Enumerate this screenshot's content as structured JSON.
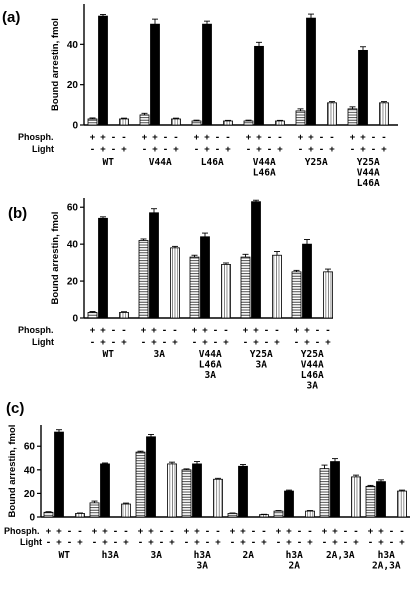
{
  "chart_data": [
    {
      "panel_label": "(a)",
      "type": "bar",
      "ylabel": "Bound arrestin, fmol",
      "ylim": [
        0,
        60
      ],
      "yticks": [
        0,
        20,
        40
      ],
      "row_labels": [
        "Phosph.",
        "Light"
      ],
      "conditions": [
        {
          "phosph": "+",
          "light": "-",
          "fill": "hatched"
        },
        {
          "phosph": "+",
          "light": "+",
          "fill": "black"
        },
        {
          "phosph": "-",
          "light": "-",
          "fill": "white"
        },
        {
          "phosph": "-",
          "light": "+",
          "fill": "dotted"
        }
      ],
      "groups": [
        {
          "label": [
            "WT"
          ],
          "values": [
            3,
            54,
            0,
            3
          ],
          "errors": [
            0.5,
            0.8,
            0,
            0.4
          ]
        },
        {
          "label": [
            "V44A"
          ],
          "values": [
            5,
            50,
            0,
            3
          ],
          "errors": [
            0.8,
            2.5,
            0,
            0.4
          ]
        },
        {
          "label": [
            "L46A"
          ],
          "values": [
            2,
            50,
            0,
            2
          ],
          "errors": [
            0.4,
            1.5,
            0,
            0.3
          ]
        },
        {
          "label": [
            "V44A",
            "L46A"
          ],
          "values": [
            2,
            39,
            0,
            2
          ],
          "errors": [
            0.4,
            2,
            0,
            0.3
          ]
        },
        {
          "label": [
            "Y25A"
          ],
          "values": [
            7,
            53,
            0,
            11
          ],
          "errors": [
            1,
            2,
            0,
            0.6
          ]
        },
        {
          "label": [
            "Y25A",
            "V44A",
            "L46A"
          ],
          "values": [
            8,
            37,
            0,
            11
          ],
          "errors": [
            1,
            1.8,
            0,
            0.6
          ]
        }
      ]
    },
    {
      "panel_label": "(b)",
      "type": "bar",
      "ylabel": "Bound arrestin, fmol",
      "ylim": [
        0,
        65
      ],
      "yticks": [
        0,
        20,
        40,
        60
      ],
      "row_labels": [
        "Phosph.",
        "Light"
      ],
      "conditions": [
        {
          "phosph": "+",
          "light": "-",
          "fill": "hatched"
        },
        {
          "phosph": "+",
          "light": "+",
          "fill": "black"
        },
        {
          "phosph": "-",
          "light": "-",
          "fill": "white"
        },
        {
          "phosph": "-",
          "light": "+",
          "fill": "dotted"
        }
      ],
      "groups": [
        {
          "label": [
            "WT"
          ],
          "values": [
            3,
            54,
            0,
            3
          ],
          "errors": [
            0.5,
            0.8,
            0,
            0.4
          ]
        },
        {
          "label": [
            "3A"
          ],
          "values": [
            42,
            57,
            0,
            38
          ],
          "errors": [
            0.8,
            2.2,
            0,
            0.8
          ]
        },
        {
          "label": [
            "V44A",
            "L46A",
            "3A"
          ],
          "values": [
            33,
            44,
            0,
            29
          ],
          "errors": [
            1,
            2,
            0,
            0.8
          ]
        },
        {
          "label": [
            "Y25A",
            "3A"
          ],
          "values": [
            33,
            63,
            0,
            34
          ],
          "errors": [
            1.5,
            0.8,
            0,
            2
          ]
        },
        {
          "label": [
            "Y25A",
            "V44A",
            "L46A",
            "3A"
          ],
          "values": [
            25,
            40,
            0,
            25
          ],
          "errors": [
            0.8,
            2.5,
            0,
            1.5
          ]
        }
      ]
    },
    {
      "panel_label": "(c)",
      "type": "bar",
      "ylabel": "Bound arrestin, fmol",
      "ylim": [
        0,
        78
      ],
      "yticks": [
        0,
        20,
        40,
        60
      ],
      "row_labels": [
        "Phosph.",
        "Light"
      ],
      "conditions": [
        {
          "phosph": "+",
          "light": "-",
          "fill": "hatched"
        },
        {
          "phosph": "+",
          "light": "+",
          "fill": "black"
        },
        {
          "phosph": "-",
          "light": "-",
          "fill": "white"
        },
        {
          "phosph": "-",
          "light": "+",
          "fill": "dotted"
        }
      ],
      "groups": [
        {
          "label": [
            "WT"
          ],
          "values": [
            4,
            72,
            0,
            3
          ],
          "errors": [
            0.5,
            2,
            0,
            0.4
          ]
        },
        {
          "label": [
            "h3A"
          ],
          "values": [
            12,
            45,
            0,
            11
          ],
          "errors": [
            1.5,
            0.8,
            0,
            0.8
          ]
        },
        {
          "label": [
            "3A"
          ],
          "values": [
            55,
            68,
            0,
            45
          ],
          "errors": [
            0.8,
            2,
            0,
            1.5
          ]
        },
        {
          "label": [
            "h3A",
            "3A"
          ],
          "values": [
            40,
            45,
            0,
            32
          ],
          "errors": [
            0.8,
            2,
            0,
            0.8
          ]
        },
        {
          "label": [
            "2A"
          ],
          "values": [
            3,
            43,
            0,
            2
          ],
          "errors": [
            0.4,
            1.5,
            0,
            0.3
          ]
        },
        {
          "label": [
            "h3A",
            "2A"
          ],
          "values": [
            5,
            22,
            0,
            5
          ],
          "errors": [
            0.5,
            0.8,
            0,
            0.5
          ]
        },
        {
          "label": [
            "2A,3A"
          ],
          "values": [
            41,
            47,
            0,
            34
          ],
          "errors": [
            3,
            2.5,
            0,
            1.5
          ]
        },
        {
          "label": [
            "h3A",
            "2A,3A"
          ],
          "values": [
            26,
            30,
            0,
            22
          ],
          "errors": [
            0.8,
            1.5,
            0,
            0.8
          ]
        }
      ]
    }
  ]
}
